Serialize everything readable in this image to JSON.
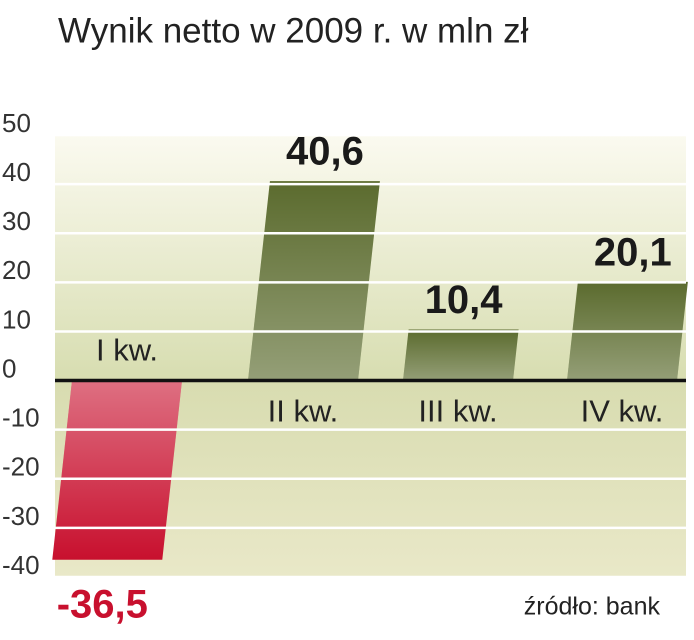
{
  "chart_data": {
    "type": "bar",
    "title": "Wynik netto w 2009 r. w mln zł",
    "categories": [
      "I kw.",
      "II kw.",
      "III kw.",
      "IV kw."
    ],
    "values": [
      -36.5,
      40.6,
      10.4,
      20.1
    ],
    "value_labels": [
      "-36,5",
      "40,6",
      "10,4",
      "20,1"
    ],
    "colors": [
      "#c8102e",
      "#5b6b2e",
      "#5b6b2e",
      "#5b6b2e"
    ],
    "ylim": [
      -40,
      50
    ],
    "yticks": [
      50,
      40,
      30,
      20,
      10,
      0,
      -10,
      -20,
      -30,
      -40
    ],
    "grid": true,
    "source": "źródło: bank"
  }
}
